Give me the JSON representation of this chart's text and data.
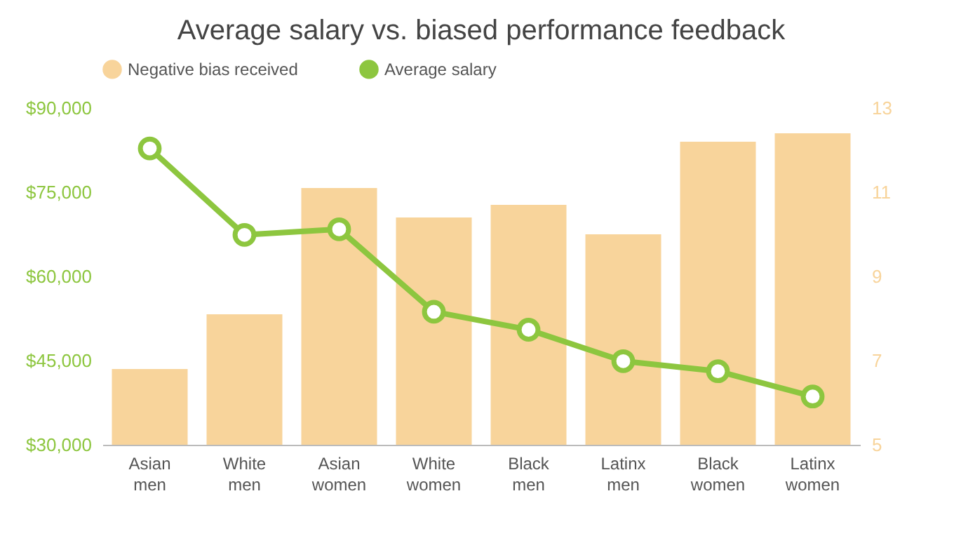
{
  "chart_data": {
    "type": "bar",
    "title": "Average salary vs. biased performance feedback",
    "categories": [
      "Asian men",
      "White men",
      "Asian women",
      "White women",
      "Black men",
      "Latinx men",
      "Black women",
      "Latinx women"
    ],
    "series": [
      {
        "name": "Negative bias received",
        "axis": "y2",
        "color": "#f8d49b",
        "values": [
          6.8,
          8.1,
          11.1,
          10.4,
          10.7,
          10.0,
          12.2,
          12.4
        ]
      },
      {
        "name": "Average salary",
        "type": "line",
        "color": "#8dc63f",
        "marker": "circle",
        "values": [
          82800,
          67400,
          68400,
          53700,
          50500,
          44900,
          43100,
          38600
        ]
      }
    ],
    "ylim": [
      30000,
      90000
    ],
    "yticks": [
      {
        "value": 30000,
        "label": "$30,000"
      },
      {
        "value": 45000,
        "label": "$45,000"
      },
      {
        "value": 60000,
        "label": "$60,000"
      },
      {
        "value": 75000,
        "label": "$75,000"
      },
      {
        "value": 90000,
        "label": "$90,000"
      }
    ],
    "y2lim": [
      5,
      13
    ],
    "y2ticks": [
      5,
      7,
      9,
      11,
      13
    ],
    "grid": false,
    "legend": "top"
  }
}
